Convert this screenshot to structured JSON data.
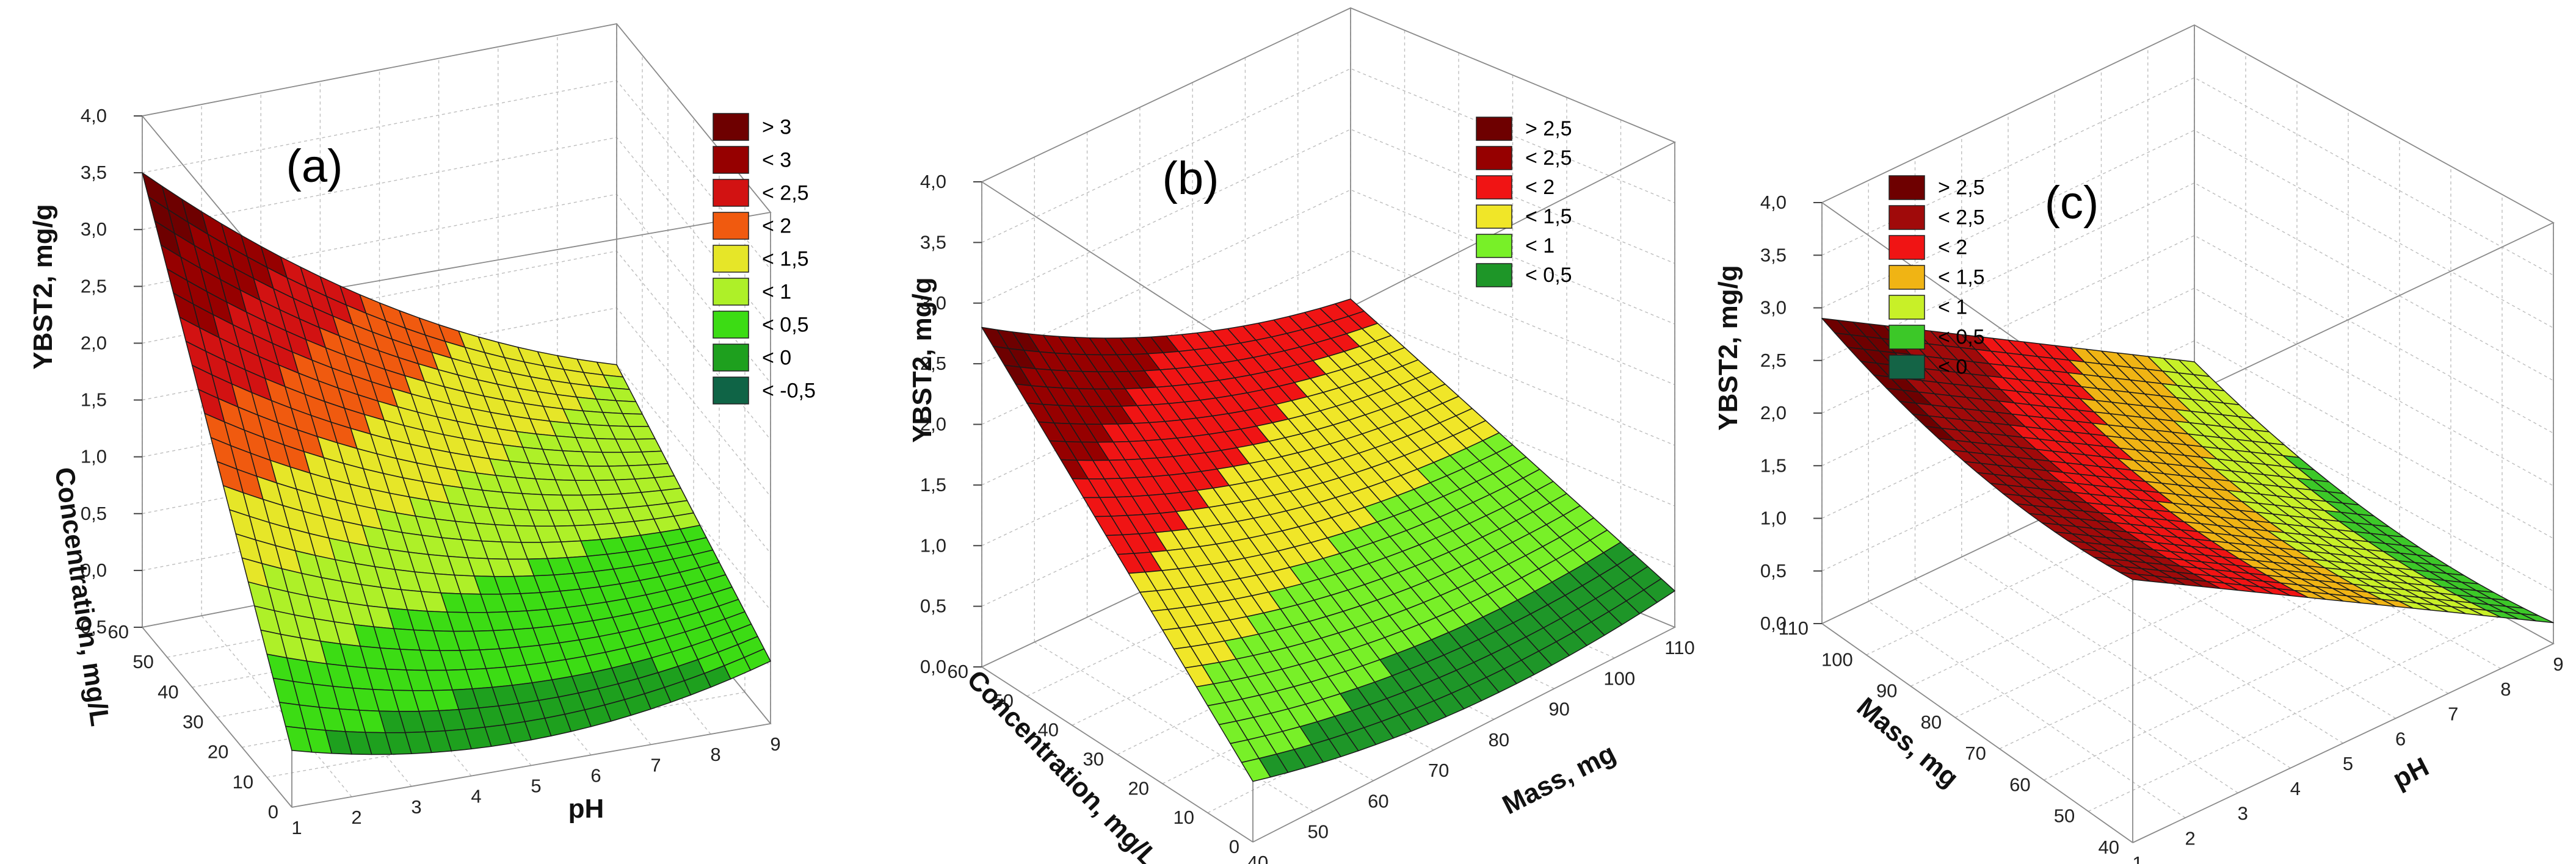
{
  "chart_data": [
    {
      "type": "surface3d",
      "panel_label": "(a)",
      "zlabel": "YBST2, mg/g",
      "xlabel": "pH",
      "ylabel": "Concentration, mg/L",
      "x_ticks": [
        "1",
        "2",
        "3",
        "4",
        "5",
        "6",
        "7",
        "8",
        "9"
      ],
      "y_ticks": [
        "0",
        "10",
        "20",
        "30",
        "40",
        "50",
        "60"
      ],
      "z_ticks": [
        "-0,5",
        "0,0",
        "0,5",
        "1,0",
        "1,5",
        "2,0",
        "2,5",
        "3,0",
        "3,5",
        "4,0"
      ],
      "xlim": [
        1,
        9
      ],
      "ylim": [
        0,
        60
      ],
      "zlim": [
        -0.5,
        4.0
      ],
      "surface_corners": {
        "x1_y0": 0.0,
        "x9_y0": 0.05,
        "x1_y60": 3.5,
        "x9_y60": 1.0
      },
      "surface_minimum": {
        "x": 6,
        "z": -0.35
      },
      "legend": [
        "> 3",
        "< 3",
        "< 2,5",
        "< 2",
        "< 1,5",
        "< 1",
        "< 0,5",
        "< 0",
        "< -0,5"
      ],
      "legend_colors": [
        "#6e0000",
        "#960000",
        "#d21212",
        "#f05a0f",
        "#e6e628",
        "#aef028",
        "#3cdc14",
        "#1ea01e",
        "#0f6446"
      ],
      "levels": [
        3.0,
        2.5,
        2.0,
        1.5,
        1.0,
        0.5,
        0.0,
        -0.5
      ]
    },
    {
      "type": "surface3d",
      "panel_label": "(b)",
      "zlabel": "YBST2, mg/g",
      "xlabel": "Mass, mg",
      "ylabel": "Concentration, mg/L",
      "x_ticks": [
        "40",
        "50",
        "60",
        "70",
        "80",
        "90",
        "100",
        "110"
      ],
      "y_ticks": [
        "0",
        "10",
        "20",
        "30",
        "40",
        "50",
        "60"
      ],
      "z_ticks": [
        "0,0",
        "0,5",
        "1,0",
        "1,5",
        "2,0",
        "2,5",
        "3,0",
        "3,5",
        "4,0"
      ],
      "xlim": [
        40,
        110
      ],
      "ylim": [
        0,
        60
      ],
      "zlim": [
        0.0,
        4.0
      ],
      "surface_corners": {
        "x40_y0": 0.5,
        "x110_y0": 0.3,
        "x40_y60": 2.8,
        "x110_y60": 1.6
      },
      "legend": [
        "> 2,5",
        "< 2,5",
        "< 2",
        "< 1,5",
        "< 1",
        "< 0,5"
      ],
      "legend_colors": [
        "#6e0000",
        "#960000",
        "#f01414",
        "#f0e628",
        "#78f028",
        "#1e9628"
      ],
      "levels": [
        2.5,
        2.0,
        1.5,
        1.0,
        0.5
      ]
    },
    {
      "type": "surface3d",
      "panel_label": "(c)",
      "zlabel": "YBST2, mg/g",
      "xlabel": "pH",
      "ylabel": "Mass, mg",
      "x_ticks": [
        "1",
        "2",
        "3",
        "4",
        "5",
        "6",
        "7",
        "8",
        "9"
      ],
      "y_ticks": [
        "40",
        "50",
        "60",
        "70",
        "80",
        "90",
        "100",
        "110"
      ],
      "z_ticks": [
        "0,0",
        "0,5",
        "1,0",
        "1,5",
        "2,0",
        "2,5",
        "3,0",
        "3,5",
        "4,0"
      ],
      "xlim": [
        1,
        9
      ],
      "ylim": [
        40,
        110
      ],
      "zlim": [
        0.0,
        4.0
      ],
      "surface_corners": {
        "x9_y110": 0.8,
        "x1_y110": 2.9,
        "x9_y40": 0.2,
        "x1_y40": 2.5
      },
      "legend": [
        "> 2,5",
        "< 2,5",
        "< 2",
        "< 1,5",
        "< 1",
        "< 0,5",
        "< 0"
      ],
      "legend_colors": [
        "#6e0000",
        "#a00a0a",
        "#f01414",
        "#f0b414",
        "#c8f028",
        "#3cc828",
        "#146446"
      ],
      "levels": [
        2.5,
        2.0,
        1.5,
        1.0,
        0.5,
        0.0
      ]
    }
  ]
}
